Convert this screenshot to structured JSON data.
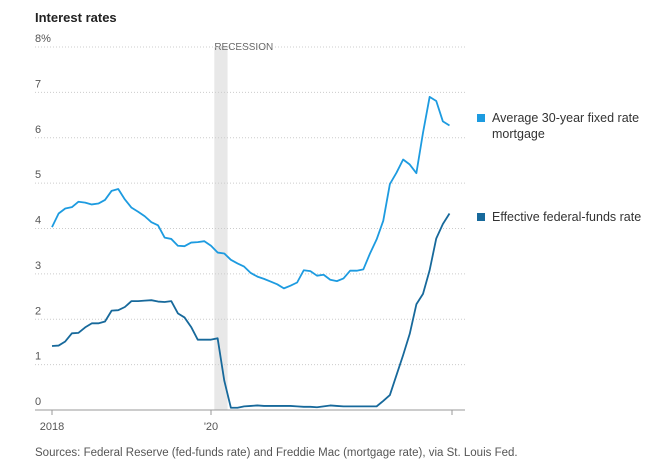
{
  "chart_data": {
    "type": "line",
    "title": "Interest rates",
    "source": "Sources: Federal Reserve (fed-funds rate) and Freddie Mac (mortgage rate), via St. Louis Fed.",
    "recession": {
      "label": "RECESSION",
      "start": 25,
      "end": 27
    },
    "categories": [
      "2018",
      null,
      null,
      null,
      null,
      null,
      null,
      null,
      null,
      null,
      null,
      null,
      null,
      null,
      null,
      null,
      null,
      null,
      null,
      null,
      null,
      null,
      null,
      null,
      "'20",
      null,
      null,
      null,
      null,
      null,
      null,
      null,
      null,
      null,
      null,
      null,
      null,
      null,
      null,
      null,
      null,
      null,
      null,
      null,
      null,
      null,
      null,
      null,
      null,
      null,
      null,
      null,
      null,
      null,
      null,
      null,
      null,
      null,
      null,
      null,
      null
    ],
    "series": [
      {
        "name": "Average 30-year fixed rate mortgage",
        "color": "#1d9be0",
        "values": [
          4.03,
          4.33,
          4.44,
          4.47,
          4.59,
          4.57,
          4.53,
          4.55,
          4.63,
          4.83,
          4.87,
          4.64,
          4.46,
          4.37,
          4.27,
          4.14,
          4.07,
          3.8,
          3.77,
          3.62,
          3.61,
          3.69,
          3.7,
          3.72,
          3.62,
          3.47,
          3.45,
          3.31,
          3.23,
          3.16,
          3.02,
          2.94,
          2.89,
          2.83,
          2.77,
          2.68,
          2.74,
          2.81,
          3.08,
          3.06,
          2.96,
          2.98,
          2.87,
          2.84,
          2.9,
          3.07,
          3.07,
          3.1,
          3.45,
          3.76,
          4.17,
          4.98,
          5.23,
          5.52,
          5.41,
          5.22,
          6.11,
          6.9,
          6.81,
          6.36,
          6.27
        ]
      },
      {
        "name": "Effective federal-funds rate",
        "color": "#17699b",
        "values": [
          1.41,
          1.42,
          1.51,
          1.69,
          1.7,
          1.82,
          1.91,
          1.91,
          1.95,
          2.19,
          2.2,
          2.27,
          2.4,
          2.4,
          2.41,
          2.42,
          2.39,
          2.38,
          2.4,
          2.13,
          2.04,
          1.83,
          1.55,
          1.55,
          1.55,
          1.58,
          0.65,
          0.05,
          0.05,
          0.08,
          0.09,
          0.1,
          0.09,
          0.09,
          0.09,
          0.09,
          0.09,
          0.08,
          0.07,
          0.07,
          0.06,
          0.08,
          0.1,
          0.09,
          0.08,
          0.08,
          0.08,
          0.08,
          0.08,
          0.08,
          0.2,
          0.33,
          0.77,
          1.21,
          1.68,
          2.33,
          2.56,
          3.08,
          3.78,
          4.1,
          4.33
        ]
      }
    ],
    "ylim": [
      0,
      8
    ],
    "yticks": [
      0,
      1,
      2,
      3,
      4,
      5,
      6,
      7,
      {
        "value": 8,
        "label": "8%"
      }
    ],
    "grid": true
  }
}
